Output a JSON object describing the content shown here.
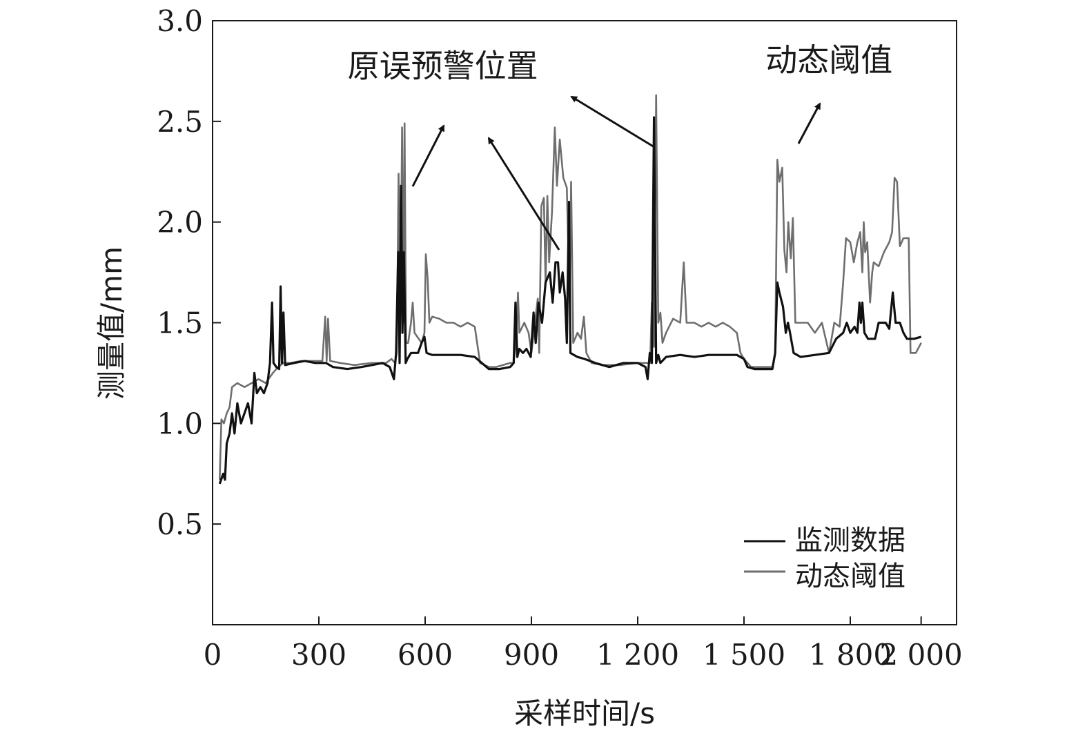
{
  "chart_data": {
    "type": "line",
    "title": "",
    "xlabel": "采样时间/s",
    "ylabel": "测量值/mm",
    "xlim": [
      0,
      2100
    ],
    "ylim": [
      0,
      3.0
    ],
    "x_ticks": [
      0,
      300,
      600,
      900,
      1200,
      1500,
      1800,
      2000
    ],
    "x_tick_labels": [
      "0",
      "300",
      "600",
      "900",
      "1 200",
      "1 500",
      "1 800",
      "2 000"
    ],
    "y_ticks": [
      0.5,
      1.0,
      1.5,
      2.0,
      2.5,
      3.0
    ],
    "y_tick_labels": [
      "0.5",
      "1.0",
      "1.5",
      "2.0",
      "2.5",
      "3.0"
    ],
    "grid": false,
    "legend_position": "bottom-right",
    "colors": {
      "monitor": "#111111",
      "threshold": "#6e6e6e"
    },
    "series": [
      {
        "name": "动态阈值",
        "color": "#6e6e6e",
        "points": [
          [
            20,
            0.72
          ],
          [
            25,
            1.02
          ],
          [
            32,
            1.0
          ],
          [
            40,
            1.05
          ],
          [
            48,
            1.08
          ],
          [
            55,
            1.18
          ],
          [
            70,
            1.2
          ],
          [
            90,
            1.18
          ],
          [
            110,
            1.2
          ],
          [
            130,
            1.22
          ],
          [
            150,
            1.2
          ],
          [
            170,
            1.25
          ],
          [
            185,
            1.28
          ],
          [
            200,
            1.3
          ],
          [
            220,
            1.3
          ],
          [
            250,
            1.31
          ],
          [
            280,
            1.31
          ],
          [
            310,
            1.31
          ],
          [
            318,
            1.53
          ],
          [
            322,
            1.31
          ],
          [
            326,
            1.52
          ],
          [
            332,
            1.31
          ],
          [
            360,
            1.3
          ],
          [
            400,
            1.29
          ],
          [
            450,
            1.3
          ],
          [
            490,
            1.3
          ],
          [
            505,
            1.32
          ],
          [
            515,
            1.3
          ],
          [
            520,
            1.35
          ],
          [
            525,
            2.24
          ],
          [
            530,
            1.55
          ],
          [
            535,
            2.47
          ],
          [
            538,
            1.5
          ],
          [
            542,
            2.49
          ],
          [
            546,
            1.4
          ],
          [
            552,
            1.4
          ],
          [
            560,
            1.5
          ],
          [
            565,
            1.6
          ],
          [
            570,
            1.45
          ],
          [
            590,
            1.4
          ],
          [
            598,
            1.45
          ],
          [
            602,
            1.84
          ],
          [
            607,
            1.72
          ],
          [
            612,
            1.5
          ],
          [
            620,
            1.53
          ],
          [
            640,
            1.52
          ],
          [
            660,
            1.5
          ],
          [
            680,
            1.5
          ],
          [
            700,
            1.48
          ],
          [
            720,
            1.5
          ],
          [
            740,
            1.48
          ],
          [
            755,
            1.3
          ],
          [
            780,
            1.28
          ],
          [
            800,
            1.28
          ],
          [
            820,
            1.29
          ],
          [
            840,
            1.3
          ],
          [
            850,
            1.3
          ],
          [
            858,
            1.45
          ],
          [
            862,
            1.65
          ],
          [
            866,
            1.45
          ],
          [
            880,
            1.5
          ],
          [
            892,
            1.45
          ],
          [
            900,
            1.35
          ],
          [
            910,
            1.5
          ],
          [
            918,
            1.62
          ],
          [
            922,
            1.35
          ],
          [
            928,
            2.08
          ],
          [
            935,
            2.12
          ],
          [
            940,
            1.7
          ],
          [
            945,
            2.13
          ],
          [
            950,
            1.8
          ],
          [
            958,
            2.05
          ],
          [
            966,
            2.47
          ],
          [
            972,
            2.18
          ],
          [
            980,
            2.41
          ],
          [
            990,
            2.22
          ],
          [
            1000,
            2.17
          ],
          [
            1008,
            1.6
          ],
          [
            1012,
            2.2
          ],
          [
            1018,
            1.4
          ],
          [
            1030,
            1.45
          ],
          [
            1040,
            1.42
          ],
          [
            1048,
            1.53
          ],
          [
            1055,
            1.35
          ],
          [
            1070,
            1.3
          ],
          [
            1100,
            1.29
          ],
          [
            1150,
            1.29
          ],
          [
            1200,
            1.3
          ],
          [
            1235,
            1.3
          ],
          [
            1240,
            1.6
          ],
          [
            1246,
            1.38
          ],
          [
            1252,
            2.63
          ],
          [
            1258,
            1.5
          ],
          [
            1264,
            1.55
          ],
          [
            1270,
            1.4
          ],
          [
            1280,
            1.45
          ],
          [
            1300,
            1.52
          ],
          [
            1320,
            1.5
          ],
          [
            1330,
            1.8
          ],
          [
            1338,
            1.5
          ],
          [
            1360,
            1.5
          ],
          [
            1380,
            1.48
          ],
          [
            1400,
            1.5
          ],
          [
            1420,
            1.48
          ],
          [
            1440,
            1.5
          ],
          [
            1460,
            1.48
          ],
          [
            1480,
            1.45
          ],
          [
            1490,
            1.35
          ],
          [
            1500,
            1.32
          ],
          [
            1520,
            1.28
          ],
          [
            1550,
            1.28
          ],
          [
            1580,
            1.28
          ],
          [
            1588,
            1.35
          ],
          [
            1594,
            2.31
          ],
          [
            1600,
            2.2
          ],
          [
            1608,
            2.27
          ],
          [
            1614,
            1.86
          ],
          [
            1620,
            1.75
          ],
          [
            1625,
            2.0
          ],
          [
            1632,
            1.82
          ],
          [
            1638,
            2.02
          ],
          [
            1645,
            1.5
          ],
          [
            1660,
            1.5
          ],
          [
            1680,
            1.5
          ],
          [
            1700,
            1.45
          ],
          [
            1720,
            1.5
          ],
          [
            1740,
            1.35
          ],
          [
            1755,
            1.5
          ],
          [
            1770,
            1.48
          ],
          [
            1780,
            1.7
          ],
          [
            1788,
            1.92
          ],
          [
            1800,
            1.9
          ],
          [
            1810,
            1.8
          ],
          [
            1820,
            1.9
          ],
          [
            1828,
            1.95
          ],
          [
            1834,
            1.75
          ],
          [
            1838,
            2.0
          ],
          [
            1842,
            1.85
          ],
          [
            1848,
            1.9
          ],
          [
            1856,
            1.6
          ],
          [
            1862,
            1.75
          ],
          [
            1866,
            1.8
          ],
          [
            1880,
            1.78
          ],
          [
            1895,
            1.85
          ],
          [
            1910,
            1.9
          ],
          [
            1918,
            1.95
          ],
          [
            1925,
            2.22
          ],
          [
            1932,
            2.2
          ],
          [
            1940,
            1.88
          ],
          [
            1950,
            1.92
          ],
          [
            1965,
            1.92
          ],
          [
            1970,
            1.35
          ],
          [
            1985,
            1.35
          ],
          [
            2000,
            1.4
          ]
        ]
      },
      {
        "name": "监测数据",
        "color": "#111111",
        "points": [
          [
            20,
            0.7
          ],
          [
            30,
            0.75
          ],
          [
            35,
            0.72
          ],
          [
            40,
            0.9
          ],
          [
            48,
            0.95
          ],
          [
            55,
            1.05
          ],
          [
            62,
            0.95
          ],
          [
            70,
            1.1
          ],
          [
            80,
            1.0
          ],
          [
            90,
            1.05
          ],
          [
            100,
            1.1
          ],
          [
            110,
            1.0
          ],
          [
            118,
            1.25
          ],
          [
            125,
            1.15
          ],
          [
            135,
            1.18
          ],
          [
            145,
            1.15
          ],
          [
            155,
            1.2
          ],
          [
            162,
            1.3
          ],
          [
            168,
            1.6
          ],
          [
            172,
            1.3
          ],
          [
            180,
            1.28
          ],
          [
            188,
            1.27
          ],
          [
            192,
            1.68
          ],
          [
            196,
            1.3
          ],
          [
            200,
            1.55
          ],
          [
            205,
            1.29
          ],
          [
            230,
            1.3
          ],
          [
            260,
            1.31
          ],
          [
            290,
            1.3
          ],
          [
            320,
            1.3
          ],
          [
            340,
            1.28
          ],
          [
            380,
            1.27
          ],
          [
            420,
            1.28
          ],
          [
            450,
            1.29
          ],
          [
            480,
            1.3
          ],
          [
            500,
            1.28
          ],
          [
            512,
            1.22
          ],
          [
            518,
            1.35
          ],
          [
            524,
            1.85
          ],
          [
            528,
            1.3
          ],
          [
            532,
            2.18
          ],
          [
            536,
            1.45
          ],
          [
            540,
            1.85
          ],
          [
            545,
            1.3
          ],
          [
            550,
            1.32
          ],
          [
            560,
            1.35
          ],
          [
            580,
            1.35
          ],
          [
            590,
            1.4
          ],
          [
            598,
            1.43
          ],
          [
            604,
            1.35
          ],
          [
            620,
            1.34
          ],
          [
            660,
            1.34
          ],
          [
            700,
            1.34
          ],
          [
            740,
            1.33
          ],
          [
            760,
            1.3
          ],
          [
            780,
            1.27
          ],
          [
            810,
            1.27
          ],
          [
            840,
            1.28
          ],
          [
            850,
            1.3
          ],
          [
            855,
            1.6
          ],
          [
            860,
            1.33
          ],
          [
            866,
            1.37
          ],
          [
            876,
            1.35
          ],
          [
            886,
            1.37
          ],
          [
            898,
            1.33
          ],
          [
            906,
            1.55
          ],
          [
            912,
            1.4
          ],
          [
            920,
            1.6
          ],
          [
            930,
            1.5
          ],
          [
            940,
            1.7
          ],
          [
            952,
            1.75
          ],
          [
            960,
            1.6
          ],
          [
            968,
            1.8
          ],
          [
            975,
            1.8
          ],
          [
            980,
            1.65
          ],
          [
            988,
            1.75
          ],
          [
            995,
            1.62
          ],
          [
            1000,
            1.4
          ],
          [
            1006,
            2.1
          ],
          [
            1010,
            1.35
          ],
          [
            1030,
            1.33
          ],
          [
            1050,
            1.32
          ],
          [
            1080,
            1.3
          ],
          [
            1120,
            1.28
          ],
          [
            1160,
            1.3
          ],
          [
            1200,
            1.3
          ],
          [
            1222,
            1.28
          ],
          [
            1228,
            1.22
          ],
          [
            1234,
            1.35
          ],
          [
            1240,
            1.3
          ],
          [
            1246,
            2.52
          ],
          [
            1252,
            1.3
          ],
          [
            1258,
            1.34
          ],
          [
            1264,
            1.3
          ],
          [
            1280,
            1.33
          ],
          [
            1320,
            1.34
          ],
          [
            1360,
            1.33
          ],
          [
            1400,
            1.34
          ],
          [
            1440,
            1.34
          ],
          [
            1480,
            1.34
          ],
          [
            1500,
            1.32
          ],
          [
            1510,
            1.28
          ],
          [
            1530,
            1.27
          ],
          [
            1560,
            1.27
          ],
          [
            1580,
            1.27
          ],
          [
            1588,
            1.35
          ],
          [
            1594,
            1.7
          ],
          [
            1600,
            1.65
          ],
          [
            1610,
            1.58
          ],
          [
            1618,
            1.45
          ],
          [
            1624,
            1.5
          ],
          [
            1630,
            1.45
          ],
          [
            1640,
            1.35
          ],
          [
            1660,
            1.33
          ],
          [
            1700,
            1.34
          ],
          [
            1740,
            1.35
          ],
          [
            1760,
            1.42
          ],
          [
            1780,
            1.45
          ],
          [
            1790,
            1.5
          ],
          [
            1800,
            1.45
          ],
          [
            1812,
            1.48
          ],
          [
            1820,
            1.45
          ],
          [
            1826,
            1.6
          ],
          [
            1830,
            1.5
          ],
          [
            1834,
            1.6
          ],
          [
            1840,
            1.45
          ],
          [
            1850,
            1.42
          ],
          [
            1870,
            1.42
          ],
          [
            1880,
            1.5
          ],
          [
            1900,
            1.5
          ],
          [
            1910,
            1.47
          ],
          [
            1920,
            1.65
          ],
          [
            1928,
            1.5
          ],
          [
            1940,
            1.5
          ],
          [
            1950,
            1.45
          ],
          [
            1960,
            1.42
          ],
          [
            1980,
            1.42
          ],
          [
            2000,
            1.43
          ]
        ]
      }
    ],
    "annotations": [
      {
        "text": "原误预警位置",
        "x": 650,
        "y": 2.72,
        "arrow_targets": [
          [
            525,
            2.2
          ],
          [
            970,
            1.8
          ],
          [
            1240,
            2.5
          ]
        ]
      },
      {
        "text": "动态阈值",
        "x": 1740,
        "y": 2.75,
        "arrow_targets": [
          [
            1640,
            2.4
          ]
        ]
      }
    ]
  }
}
